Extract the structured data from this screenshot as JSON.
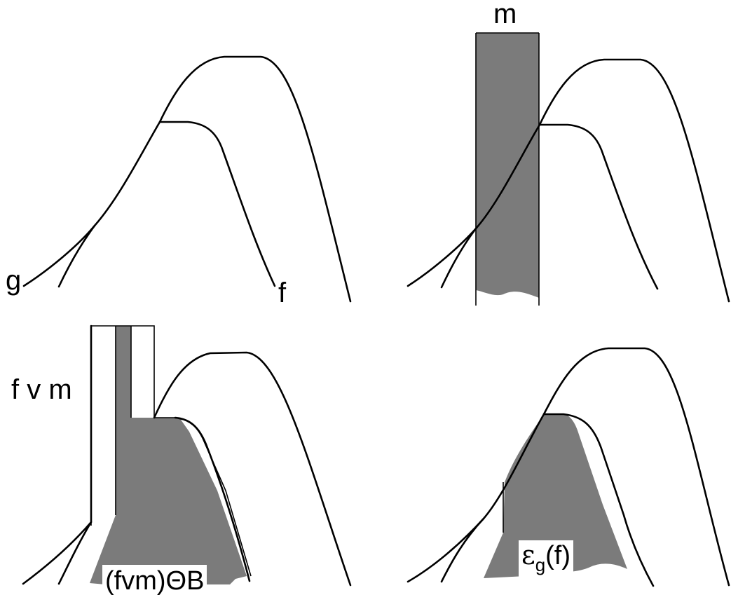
{
  "labels": {
    "g": "g",
    "f": "f",
    "m": "m",
    "fvm": "f v m",
    "opening": "(fvm)ΘB",
    "eps": "ε",
    "eps_sub": "g",
    "eps_arg": "(f)"
  },
  "colors": {
    "fill": "#7b7b7b",
    "stroke": "#000000",
    "background": "#ffffff"
  }
}
